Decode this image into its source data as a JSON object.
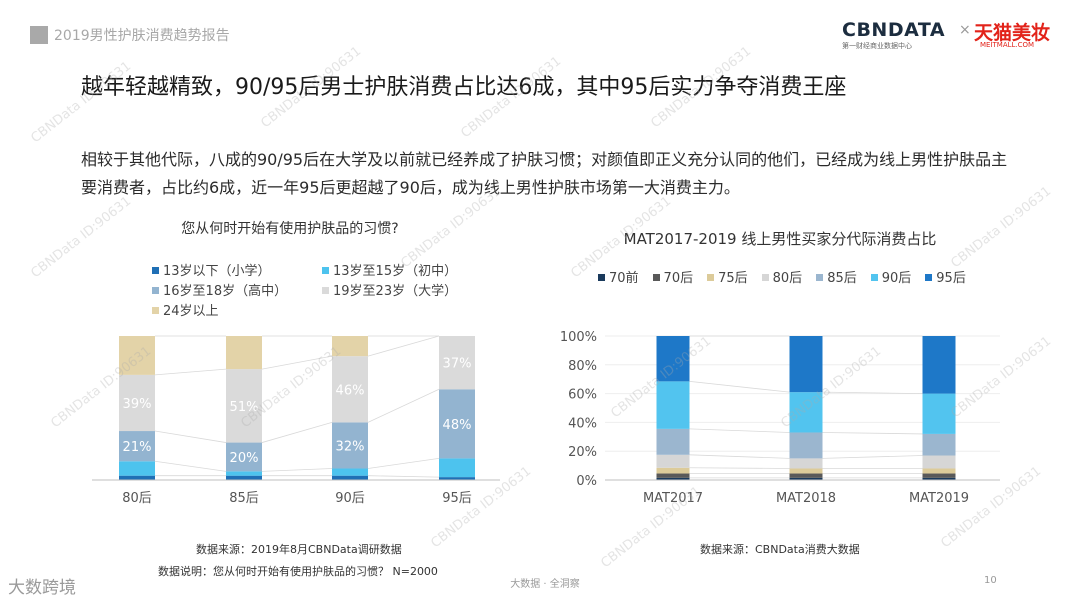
{
  "header": {
    "report_title": "2019男性护肤消费趋势报告",
    "logo_cbn": "CBNDATA",
    "logo_cbn_sub": "第一财经商业数据中心",
    "logo_x": "×",
    "logo_tmall": "天猫美妆",
    "logo_tmall_sub": "MEITMALL.COM"
  },
  "title": "越年轻越精致，90/95后男士护肤消费占比达6成，其中95后实力争夺消费王座",
  "body_text": "相较于其他代际，八成的90/95后在大学及以前就已经养成了护肤习惯；对颜值即正义充分认同的他们，已经成为线上男性护肤品主要消费者，占比约6成，近一年95后更超越了90后，成为线上男性护肤市场第一大消费主力。",
  "left_legend": [
    {
      "label": "13岁以下（小学）",
      "color": "#1f6fb5"
    },
    {
      "label": "13岁至15岁（初中）",
      "color": "#4dc3ee"
    },
    {
      "label": "16岁至18岁（高中）",
      "color": "#93b4d0"
    },
    {
      "label": "19岁至23岁（大学）",
      "color": "#dadada"
    },
    {
      "label": "24岁以上",
      "color": "#e3d3a8"
    }
  ],
  "right_legend": [
    {
      "label": "70前",
      "color": "#1a3a5c"
    },
    {
      "label": "70后",
      "color": "#595959"
    },
    {
      "label": "75后",
      "color": "#dccb9a"
    },
    {
      "label": "80后",
      "color": "#d6d6d6"
    },
    {
      "label": "85后",
      "color": "#9bb6cf"
    },
    {
      "label": "90后",
      "color": "#52c4ef"
    },
    {
      "label": "95后",
      "color": "#1e78c8"
    }
  ],
  "chart_data": [
    {
      "type": "bar",
      "stacked": true,
      "title": "您从何时开始有使用护肤品的习惯?",
      "categories": [
        "80后",
        "85后",
        "90后",
        "95后"
      ],
      "series": [
        {
          "name": "13岁以下（小学）",
          "values": [
            3,
            3,
            3,
            2
          ]
        },
        {
          "name": "13岁至15岁（初中）",
          "values": [
            10,
            3,
            5,
            13
          ]
        },
        {
          "name": "16岁至18岁（高中）",
          "values": [
            21,
            20,
            32,
            48
          ]
        },
        {
          "name": "19岁至23岁（大学）",
          "values": [
            39,
            51,
            46,
            37
          ]
        },
        {
          "name": "24岁以上",
          "values": [
            27,
            23,
            14,
            0
          ]
        }
      ],
      "data_labels": [
        {
          "series": "16岁至18岁（高中）",
          "values": [
            "21%",
            "20%",
            "32%",
            "48%"
          ]
        },
        {
          "series": "19岁至23岁（大学）",
          "values": [
            "39%",
            "51%",
            "46%",
            "37%"
          ]
        }
      ],
      "ylim": [
        0,
        100
      ]
    },
    {
      "type": "bar",
      "stacked": true,
      "title": "MAT2017-2019 线上男性买家分代际消费占比",
      "categories": [
        "MAT2017",
        "MAT2018",
        "MAT2019"
      ],
      "series": [
        {
          "name": "70前",
          "values": [
            1.5,
            1.5,
            1.5
          ]
        },
        {
          "name": "70后",
          "values": [
            3,
            3,
            3
          ]
        },
        {
          "name": "75后",
          "values": [
            4,
            3.5,
            3.5
          ]
        },
        {
          "name": "80后",
          "values": [
            9,
            7,
            9
          ]
        },
        {
          "name": "85后",
          "values": [
            18,
            18,
            15
          ]
        },
        {
          "name": "90后",
          "values": [
            33,
            28,
            28
          ]
        },
        {
          "name": "95后",
          "values": [
            31.5,
            39,
            40
          ]
        }
      ],
      "yticks": [
        "0%",
        "20%",
        "40%",
        "60%",
        "80%",
        "100%"
      ],
      "ylim": [
        0,
        100
      ]
    }
  ],
  "sources": {
    "left_source": "数据来源：2019年8月CBNData调研数据",
    "left_note": "数据说明：您从何时开始有使用护肤品的习惯？ N=2000",
    "right_source": "数据来源：CBNData消费大数据"
  },
  "footer": {
    "mid": "大数据 · 全洞察",
    "page": "10",
    "brand": "大数跨境"
  },
  "watermark": "CBNData ID:90631"
}
